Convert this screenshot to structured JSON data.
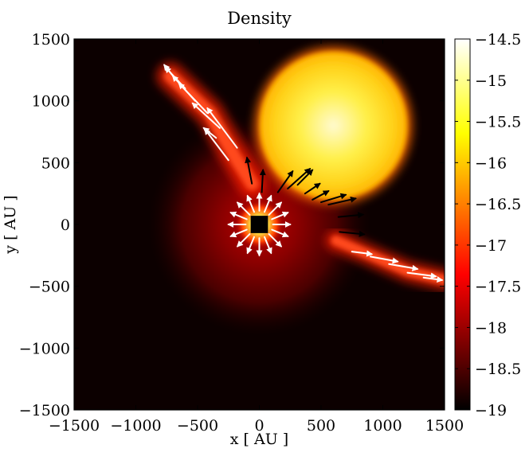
{
  "chart_data": {
    "type": "heatmap",
    "title": "Density",
    "xlabel": "x [ AU ]",
    "ylabel": "y [ AU ]",
    "xlim": [
      -1500,
      1500
    ],
    "ylim": [
      -1500,
      1500
    ],
    "x_ticks": [
      -1500,
      -1000,
      -500,
      0,
      500,
      1000,
      1500
    ],
    "y_ticks": [
      -1500,
      -1000,
      -500,
      0,
      500,
      1000,
      1500
    ],
    "x_tick_labels": [
      "−1500",
      "−1000",
      "−500",
      "0",
      "500",
      "1000",
      "1500"
    ],
    "y_tick_labels": [
      "−1500",
      "−1000",
      "−500",
      "0",
      "500",
      "1000",
      "1500"
    ],
    "colorbar": {
      "range": [
        -19,
        -14.5
      ],
      "ticks": [
        -19,
        -18.5,
        -18,
        -17.5,
        -17,
        -16.5,
        -16,
        -15.5,
        -15,
        -14.5
      ],
      "tick_labels": [
        "−19",
        "−18.5",
        "−18",
        "−17.5",
        "−17",
        "−16.5",
        "−16",
        "−15.5",
        "−15",
        "−14.5"
      ],
      "colormap": "hot"
    },
    "features": {
      "bubble": {
        "center": [
          600,
          800
        ],
        "radius": 650,
        "peak_value": -14.6
      },
      "central_sink": {
        "center": [
          0,
          0
        ],
        "half_size": 70
      },
      "background_value": -19,
      "envelope_radius": 900,
      "filament_upper_left": [
        [
          -720,
          1200
        ],
        [
          -400,
          900
        ],
        [
          -200,
          550
        ],
        [
          -60,
          330
        ]
      ],
      "filament_lower_right": [
        [
          620,
          -130
        ],
        [
          900,
          -250
        ],
        [
          1200,
          -380
        ],
        [
          1500,
          -450
        ]
      ]
    },
    "velocity_vectors": {
      "black": [
        [
          -60,
          330,
          -40,
          210
        ],
        [
          20,
          260,
          10,
          180
        ],
        [
          150,
          260,
          120,
          170
        ],
        [
          230,
          290,
          180,
          160
        ],
        [
          310,
          320,
          120,
          120
        ],
        [
          370,
          250,
          120,
          80
        ],
        [
          430,
          200,
          130,
          70
        ],
        [
          500,
          180,
          200,
          60
        ],
        [
          560,
          160,
          220,
          50
        ],
        [
          640,
          60,
          200,
          20
        ],
        [
          650,
          -60,
          200,
          -20
        ]
      ],
      "white_radial": {
        "center": [
          0,
          0
        ],
        "inner_radius": 110,
        "length": 140,
        "count": 16
      },
      "white_upper_left": [
        [
          -180,
          620,
          -240,
          320
        ],
        [
          -250,
          520,
          -190,
          250
        ],
        [
          -320,
          780,
          -220,
          200
        ],
        [
          -420,
          900,
          -230,
          240
        ],
        [
          -520,
          1000,
          -180,
          200
        ],
        [
          -600,
          1100,
          -160,
          170
        ],
        [
          -690,
          1190,
          -80,
          100
        ],
        [
          -350,
          700,
          -100,
          80
        ]
      ],
      "white_lower_right": [
        [
          750,
          -220,
          160,
          -20
        ],
        [
          900,
          -260,
          220,
          -40
        ],
        [
          1050,
          -320,
          230,
          -40
        ],
        [
          1200,
          -390,
          230,
          -30
        ],
        [
          1330,
          -430,
          150,
          -20
        ]
      ]
    }
  }
}
